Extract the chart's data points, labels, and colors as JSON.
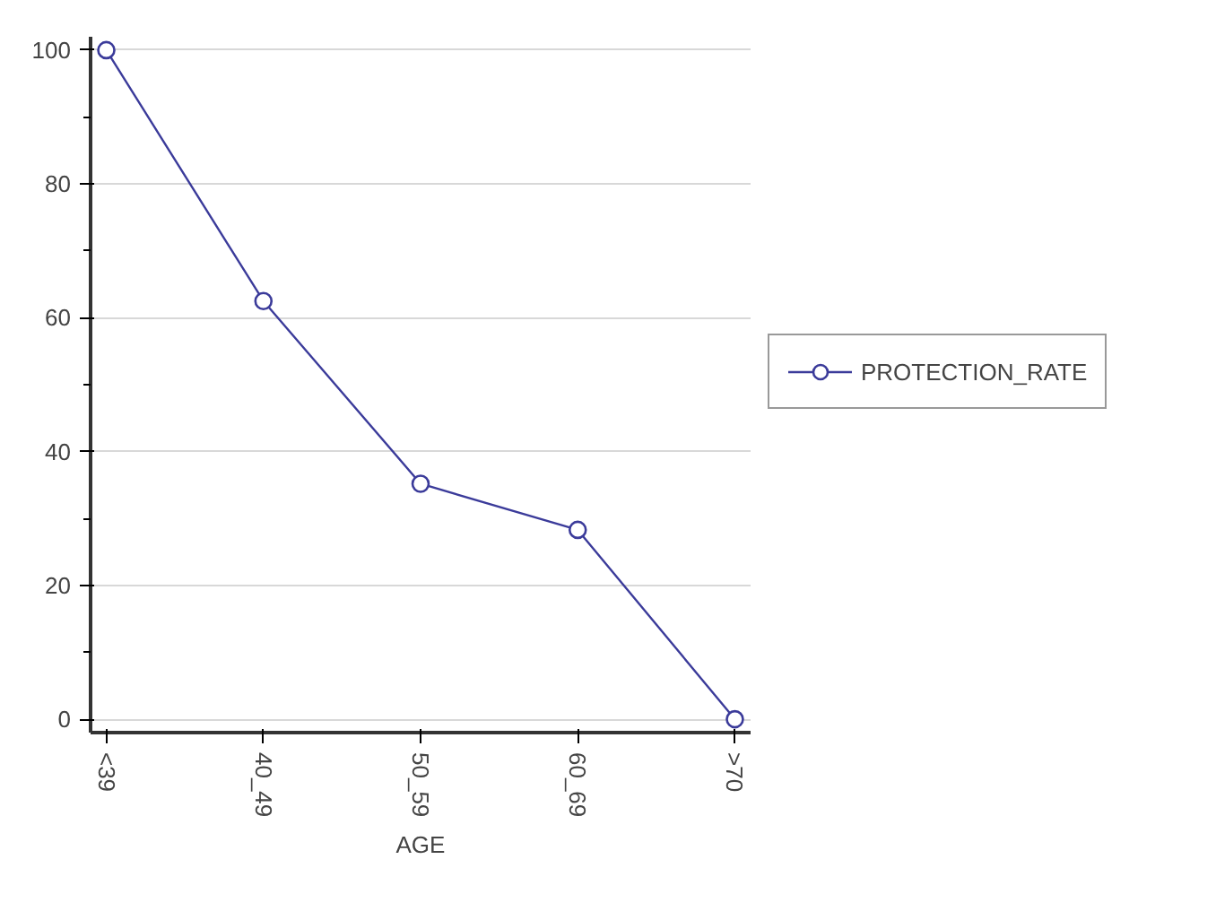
{
  "chart_data": {
    "type": "line",
    "xlabel": "AGE",
    "categories": [
      "<39",
      "40_49",
      "50_59",
      "60_69",
      ">70"
    ],
    "series": [
      {
        "name": "PROTECTION_RATE",
        "color": "#3b3b9a",
        "values": [
          100,
          62.5,
          35.2,
          28.3,
          0
        ]
      }
    ],
    "ylim": [
      -2,
      102
    ],
    "yticks": [
      0,
      20,
      40,
      60,
      80,
      100
    ],
    "grid": "y",
    "legend": "right",
    "marker": "circle",
    "line_style": "solid"
  }
}
